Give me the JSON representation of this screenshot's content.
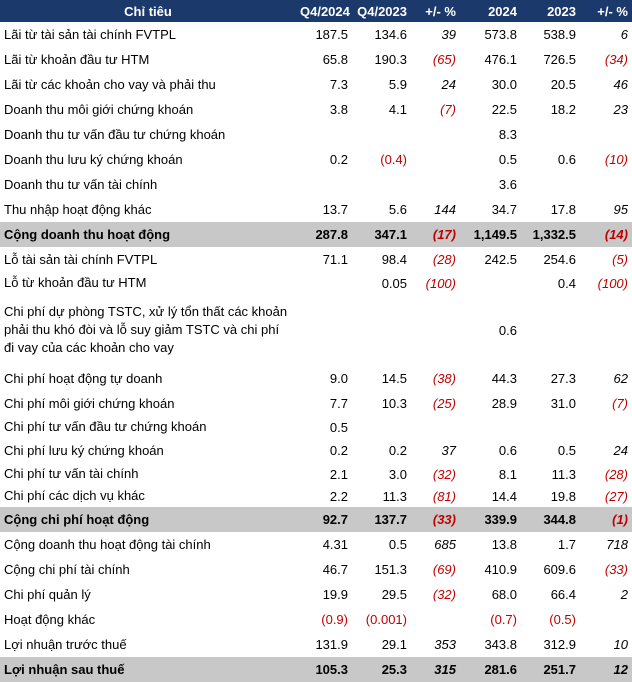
{
  "header": [
    "Chỉ tiêu",
    "Q4/2024",
    "Q4/2023",
    "+/- %",
    "2024",
    "2023",
    "+/- %"
  ],
  "rows": [
    {
      "label": "Lãi từ tài sản tài chính FVTPL",
      "v": [
        "187.5",
        "134.6",
        "39",
        "573.8",
        "538.9",
        "6"
      ]
    },
    {
      "label": "Lãi từ khoản đầu tư HTM",
      "v": [
        "65.8",
        "190.3",
        "(65)",
        "476.1",
        "726.5",
        "(34)"
      ]
    },
    {
      "label": "Lãi từ các khoản cho vay và phải thu",
      "v": [
        "7.3",
        "5.9",
        "24",
        "30.0",
        "20.5",
        "46"
      ]
    },
    {
      "label": "Doanh thu môi giới chứng khoán",
      "v": [
        "3.8",
        "4.1",
        "(7)",
        "22.5",
        "18.2",
        "23"
      ]
    },
    {
      "label": "Doanh thu tư vấn đầu tư chứng khoán",
      "v": [
        "",
        "",
        "",
        "8.3",
        "",
        ""
      ]
    },
    {
      "label": "Doanh thu lưu ký chứng khoán",
      "v": [
        "0.2",
        "(0.4)",
        "",
        "0.5",
        "0.6",
        "(10)"
      ]
    },
    {
      "label": "Doanh thu tư vấn tài chính",
      "v": [
        "",
        "",
        "",
        "3.6",
        "",
        ""
      ]
    },
    {
      "label": "Thu nhập hoạt động khác",
      "v": [
        "13.7",
        "5.6",
        "144",
        "34.7",
        "17.8",
        "95"
      ]
    },
    {
      "label": "Cộng doanh thu hoạt động",
      "total": true,
      "v": [
        "287.8",
        "347.1",
        "(17)",
        "1,149.5",
        "1,332.5",
        "(14)"
      ]
    },
    {
      "label": "Lỗ tài sản tài chính FVTPL",
      "v": [
        "71.1",
        "98.4",
        "(28)",
        "242.5",
        "254.6",
        "(5)"
      ]
    },
    {
      "label": "Lỗ từ khoản đầu tư HTM",
      "mid": true,
      "v": [
        "",
        "0.05",
        "(100)",
        "",
        "0.4",
        "(100)"
      ]
    },
    {
      "label": "Chi phí dự phòng TSTC, xử lý tổn thất các khoản phải thu khó đòi và lỗ suy giảm TSTC và chi phí đi vay của các khoản cho vay",
      "tall": true,
      "v": [
        "",
        "",
        "",
        "0.6",
        "",
        ""
      ]
    },
    {
      "label": "Chi phí hoạt động tự doanh",
      "v": [
        "9.0",
        "14.5",
        "(38)",
        "44.3",
        "27.3",
        "62"
      ]
    },
    {
      "label": "Chi phí môi giới chứng khoán",
      "v": [
        "7.7",
        "10.3",
        "(25)",
        "28.9",
        "31.0",
        "(7)"
      ]
    },
    {
      "label": "Chi phí tư vấn đầu tư chứng khoán",
      "mid": true,
      "v": [
        "0.5",
        "",
        "",
        "",
        "",
        ""
      ]
    },
    {
      "label": "Chi phí lưu ký chứng khoán",
      "v": [
        "0.2",
        "0.2",
        "37",
        "0.6",
        "0.5",
        "24"
      ]
    },
    {
      "label": "Chi phí tư vấn tài chính",
      "mid": true,
      "v": [
        "2.1",
        "3.0",
        "(32)",
        "8.1",
        "11.3",
        "(28)"
      ]
    },
    {
      "label": "Chi phí các dịch vụ khác",
      "mid": true,
      "v": [
        "2.2",
        "11.3",
        "(81)",
        "14.4",
        "19.8",
        "(27)"
      ]
    },
    {
      "label": "Cộng chi phí hoạt động",
      "total": true,
      "v": [
        "92.7",
        "137.7",
        "(33)",
        "339.9",
        "344.8",
        "(1)"
      ]
    },
    {
      "label": "Cộng doanh thu hoạt động tài chính",
      "v": [
        "4.31",
        "0.5",
        "685",
        "13.8",
        "1.7",
        "718"
      ]
    },
    {
      "label": "Cộng chi phí tài chính",
      "v": [
        "46.7",
        "151.3",
        "(69)",
        "410.9",
        "609.6",
        "(33)"
      ]
    },
    {
      "label": "Chi phí quản lý",
      "v": [
        "19.9",
        "29.5",
        "(32)",
        "68.0",
        "66.4",
        "2"
      ]
    },
    {
      "label": "Hoạt động khác",
      "v": [
        "(0.9)",
        "(0.001)",
        "",
        "(0.7)",
        "(0.5)",
        ""
      ]
    },
    {
      "label": "Lợi nhuận trước thuế",
      "v": [
        "131.9",
        "29.1",
        "353",
        "343.8",
        "312.9",
        "10"
      ]
    },
    {
      "label": "Lợi nhuận sau thuế",
      "total": true,
      "v": [
        "105.3",
        "25.3",
        "315",
        "281.6",
        "251.7",
        "12"
      ]
    }
  ]
}
